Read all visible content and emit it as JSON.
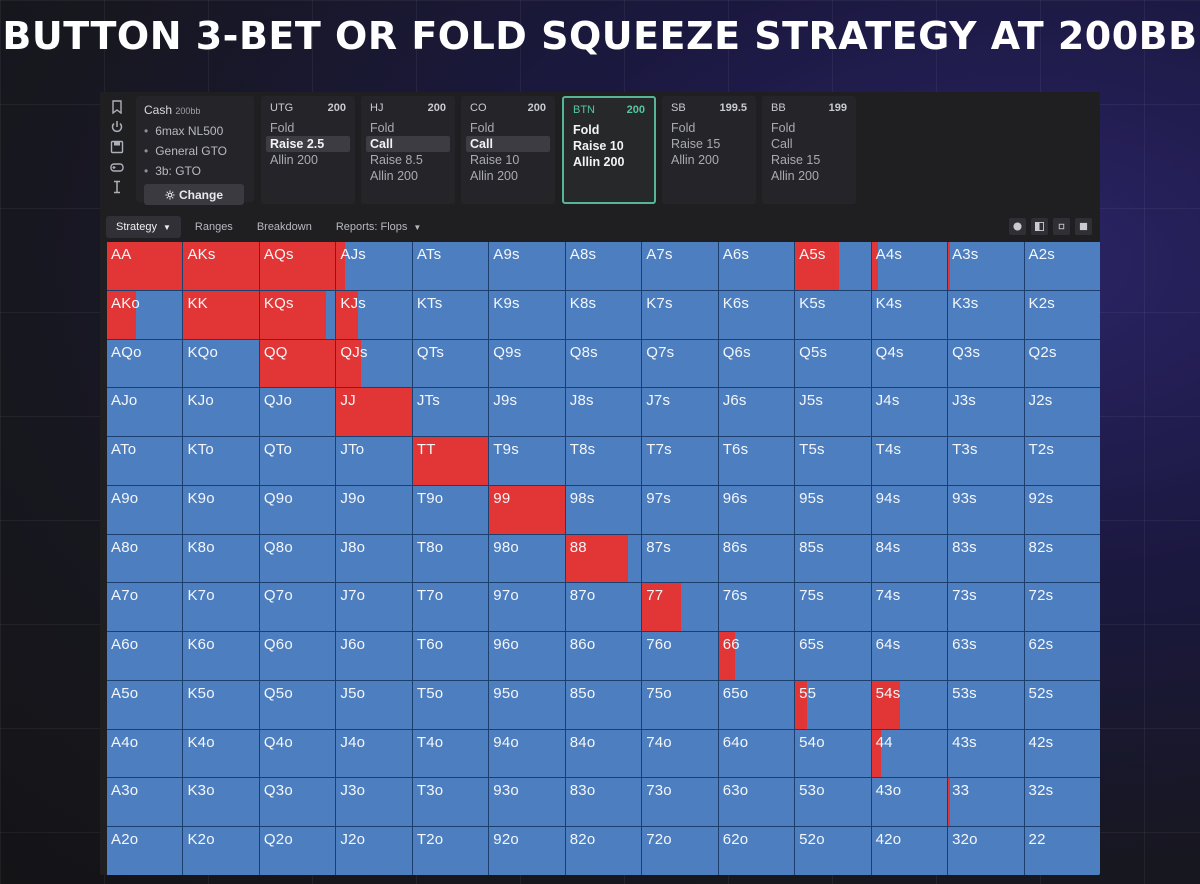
{
  "headline": "BUTTON 3-BET OR FOLD SQUEEZE STRATEGY AT 200BB",
  "config": {
    "title": "Cash",
    "title_small": "200bb",
    "items": [
      "6max NL500",
      "General GTO",
      "3b: GTO"
    ],
    "change_label": "Change",
    "icons": [
      "bookmark-icon",
      "power-icon",
      "save-icon",
      "gamepad-icon",
      "text-cursor-icon",
      "gear-icon"
    ]
  },
  "positions": [
    {
      "name": "UTG",
      "stack": "200",
      "actions": [
        "Fold",
        "Raise 2.5",
        "Allin 200"
      ],
      "selected": 1
    },
    {
      "name": "HJ",
      "stack": "200",
      "actions": [
        "Fold",
        "Call",
        "Raise 8.5",
        "Allin 200"
      ],
      "selected": 1
    },
    {
      "name": "CO",
      "stack": "200",
      "actions": [
        "Fold",
        "Call",
        "Raise 10",
        "Allin 200"
      ],
      "selected": 1
    },
    {
      "name": "BTN",
      "stack": "200",
      "actions": [
        "Fold",
        "Raise 10",
        "Allin 200"
      ],
      "active": true
    },
    {
      "name": "SB",
      "stack": "199.5",
      "actions": [
        "Fold",
        "Raise 15",
        "Allin 200"
      ]
    },
    {
      "name": "BB",
      "stack": "199",
      "actions": [
        "Fold",
        "Call",
        "Raise 15",
        "Allin 200"
      ]
    }
  ],
  "tabs": [
    {
      "label": "Strategy",
      "dropdown": true,
      "active": true
    },
    {
      "label": "Ranges"
    },
    {
      "label": "Breakdown"
    },
    {
      "label": "Reports: Flops",
      "dropdown": true
    }
  ],
  "view_icons": [
    "pie-chart-icon",
    "half-square-icon",
    "small-square-icon",
    "square-icon"
  ],
  "colors": {
    "raise": "#e23535",
    "fold": "#4d7fc0",
    "accent": "#55b596"
  },
  "hands": [
    [
      "AA",
      "AKs",
      "AQs",
      "AJs",
      "ATs",
      "A9s",
      "A8s",
      "A7s",
      "A6s",
      "A5s",
      "A4s",
      "A3s",
      "A2s"
    ],
    [
      "AKo",
      "KK",
      "KQs",
      "KJs",
      "KTs",
      "K9s",
      "K8s",
      "K7s",
      "K6s",
      "K5s",
      "K4s",
      "K3s",
      "K2s"
    ],
    [
      "AQo",
      "KQo",
      "QQ",
      "QJs",
      "QTs",
      "Q9s",
      "Q8s",
      "Q7s",
      "Q6s",
      "Q5s",
      "Q4s",
      "Q3s",
      "Q2s"
    ],
    [
      "AJo",
      "KJo",
      "QJo",
      "JJ",
      "JTs",
      "J9s",
      "J8s",
      "J7s",
      "J6s",
      "J5s",
      "J4s",
      "J3s",
      "J2s"
    ],
    [
      "ATo",
      "KTo",
      "QTo",
      "JTo",
      "TT",
      "T9s",
      "T8s",
      "T7s",
      "T6s",
      "T5s",
      "T4s",
      "T3s",
      "T2s"
    ],
    [
      "A9o",
      "K9o",
      "Q9o",
      "J9o",
      "T9o",
      "99",
      "98s",
      "97s",
      "96s",
      "95s",
      "94s",
      "93s",
      "92s"
    ],
    [
      "A8o",
      "K8o",
      "Q8o",
      "J8o",
      "T8o",
      "98o",
      "88",
      "87s",
      "86s",
      "85s",
      "84s",
      "83s",
      "82s"
    ],
    [
      "A7o",
      "K7o",
      "Q7o",
      "J7o",
      "T7o",
      "97o",
      "87o",
      "77",
      "76s",
      "75s",
      "74s",
      "73s",
      "72s"
    ],
    [
      "A6o",
      "K6o",
      "Q6o",
      "J6o",
      "T6o",
      "96o",
      "86o",
      "76o",
      "66",
      "65s",
      "64s",
      "63s",
      "62s"
    ],
    [
      "A5o",
      "K5o",
      "Q5o",
      "J5o",
      "T5o",
      "95o",
      "85o",
      "75o",
      "65o",
      "55",
      "54s",
      "53s",
      "52s"
    ],
    [
      "A4o",
      "K4o",
      "Q4o",
      "J4o",
      "T4o",
      "94o",
      "84o",
      "74o",
      "64o",
      "54o",
      "44",
      "43s",
      "42s"
    ],
    [
      "A3o",
      "K3o",
      "Q3o",
      "J3o",
      "T3o",
      "93o",
      "83o",
      "73o",
      "63o",
      "53o",
      "43o",
      "33",
      "32s"
    ],
    [
      "A2o",
      "K2o",
      "Q2o",
      "J2o",
      "T2o",
      "92o",
      "82o",
      "72o",
      "62o",
      "52o",
      "42o",
      "32o",
      "22"
    ]
  ],
  "raise_freq": {
    "AA": 1.0,
    "AKs": 1.0,
    "AQs": 1.0,
    "AJs": 0.12,
    "A5s": 0.58,
    "A4s": 0.08,
    "A3s": 0.02,
    "AKo": 0.38,
    "KK": 1.0,
    "KQs": 0.88,
    "KJs": 0.28,
    "QQ": 1.0,
    "QJs": 0.32,
    "JJ": 1.0,
    "TT": 1.0,
    "99": 1.0,
    "88": 0.82,
    "77": 0.52,
    "66": 0.22,
    "55": 0.16,
    "54s": 0.38,
    "44": 0.12,
    "33": 0.03
  }
}
